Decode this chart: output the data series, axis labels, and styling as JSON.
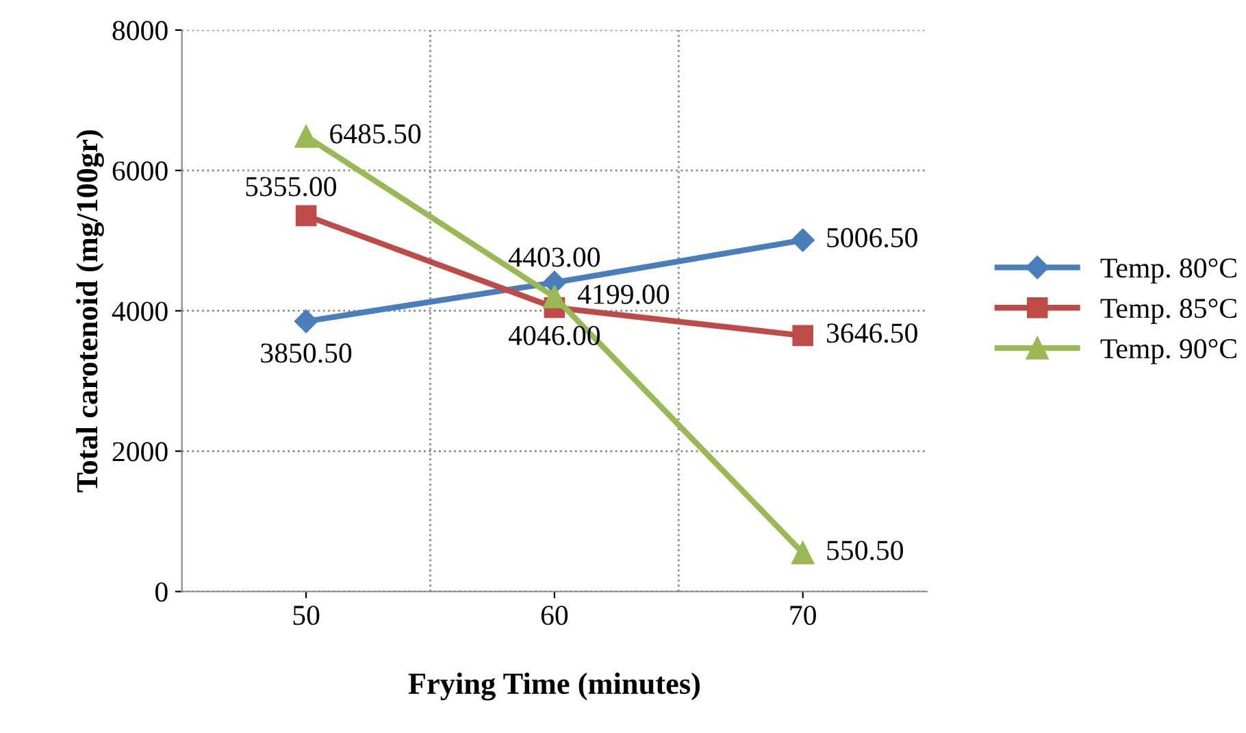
{
  "chart_data": {
    "type": "line",
    "xlabel": "Frying Time (minutes)",
    "ylabel": "Total carotenoid (mg/100gr)",
    "categories": [
      "50",
      "60",
      "70"
    ],
    "ylim": [
      0,
      8000
    ],
    "yticks": [
      0,
      2000,
      4000,
      6000,
      8000
    ],
    "grid": true,
    "legend": "right",
    "line_style": "solid",
    "series": [
      {
        "name": "Temp. 80°C",
        "color": "#4a7ebb",
        "marker": "diamond",
        "values": [
          3850.5,
          4403.0,
          5006.5
        ],
        "value_labels": [
          "3850.50",
          "4403.00",
          "5006.50"
        ]
      },
      {
        "name": "Temp. 85°C",
        "color": "#be4b48",
        "marker": "square",
        "values": [
          5355.0,
          4046.0,
          3646.5
        ],
        "value_labels": [
          "5355.00",
          "4046.00",
          "3646.50"
        ]
      },
      {
        "name": "Temp. 90°C",
        "color": "#98b954",
        "marker": "triangle",
        "values": [
          6485.5,
          4199.0,
          550.5
        ],
        "value_labels": [
          "6485.50",
          "4199.00",
          "550.50"
        ]
      }
    ]
  }
}
